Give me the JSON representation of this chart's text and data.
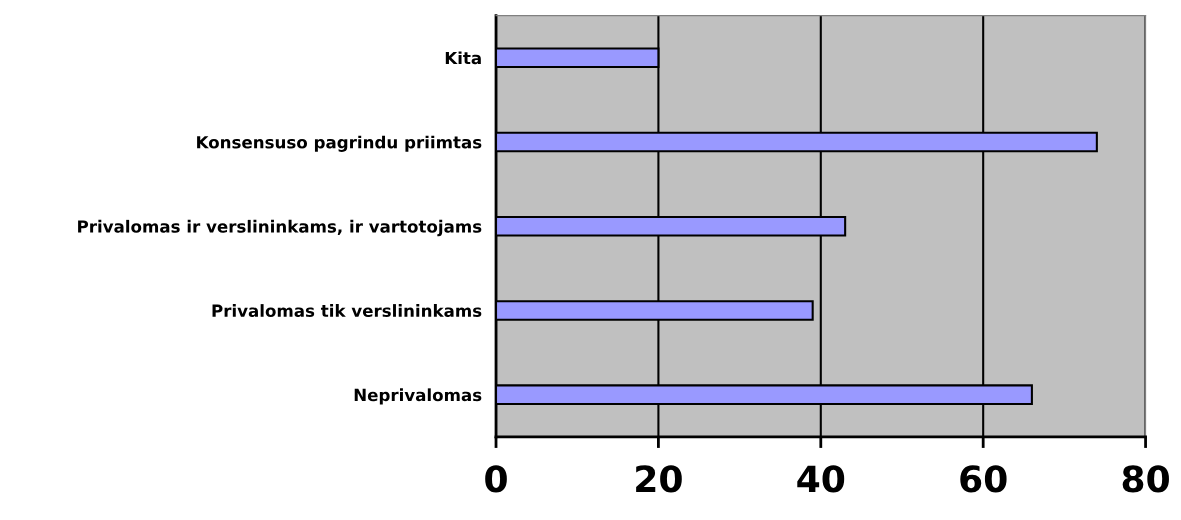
{
  "chart_data": {
    "type": "bar",
    "orientation": "horizontal",
    "categories": [
      "Kita",
      "Konsensuso pagrindu priimtas",
      "Privalomas ir verslininkams, ir vartotojams",
      "Privalomas tik verslininkams",
      "Neprivalomas"
    ],
    "values": [
      20,
      74,
      43,
      39,
      66
    ],
    "color": "#9999ff",
    "xlim": [
      0,
      80
    ],
    "xticks": [
      0,
      20,
      40,
      60,
      80
    ],
    "grid": "x"
  }
}
